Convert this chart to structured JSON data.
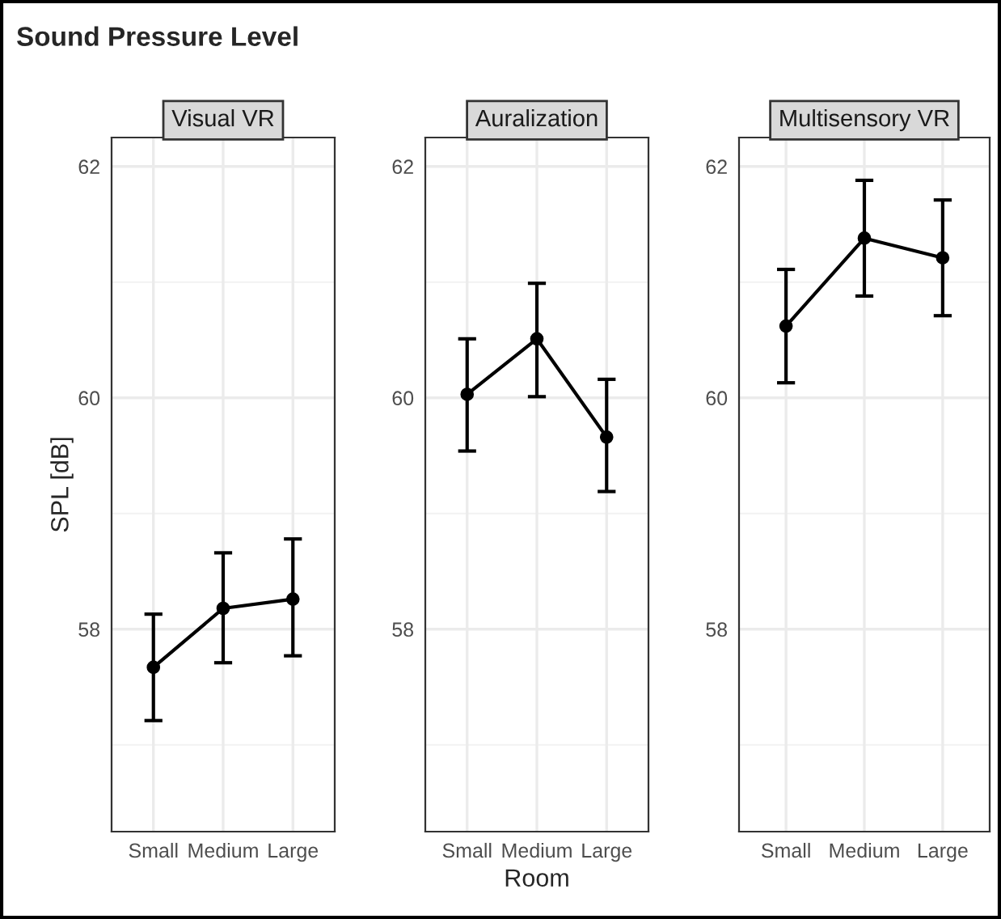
{
  "chart_data": [
    {
      "type": "line",
      "title": "Visual VR",
      "ylabel": "SPL [dB]",
      "annotations": [
        "Sound Pressure Level"
      ],
      "categories": [
        "Small",
        "Medium",
        "Large"
      ],
      "series": [
        {
          "color": "#000000",
          "values": [
            57.67,
            58.18,
            58.26
          ],
          "errors": [
            [
              57.21,
              58.13
            ],
            [
              57.71,
              58.66
            ],
            [
              57.77,
              58.78
            ]
          ]
        }
      ],
      "ylim": [
        56.25,
        62.25
      ],
      "yticks": [
        58,
        60,
        62
      ],
      "grid": true,
      "marker": "circle",
      "line_style": "solid"
    },
    {
      "type": "line",
      "title": "Auralization",
      "xlabel": "Room",
      "categories": [
        "Small",
        "Medium",
        "Large"
      ],
      "series": [
        {
          "color": "#000000",
          "values": [
            60.03,
            60.51,
            59.66
          ],
          "errors": [
            [
              59.54,
              60.51
            ],
            [
              60.01,
              60.99
            ],
            [
              59.19,
              60.16
            ]
          ]
        }
      ],
      "ylim": [
        56.25,
        62.25
      ],
      "yticks": [
        58,
        60,
        62
      ],
      "grid": true,
      "marker": "circle",
      "line_style": "solid"
    },
    {
      "type": "line",
      "title": "Multisensory VR",
      "categories": [
        "Small",
        "Medium",
        "Large"
      ],
      "series": [
        {
          "color": "#000000",
          "values": [
            60.62,
            61.38,
            61.21
          ],
          "errors": [
            [
              60.13,
              61.11
            ],
            [
              60.88,
              61.88
            ],
            [
              60.71,
              61.71
            ]
          ]
        }
      ],
      "ylim": [
        56.25,
        62.25
      ],
      "yticks": [
        58,
        60,
        62
      ],
      "grid": true,
      "marker": "circle",
      "line_style": "solid"
    }
  ]
}
